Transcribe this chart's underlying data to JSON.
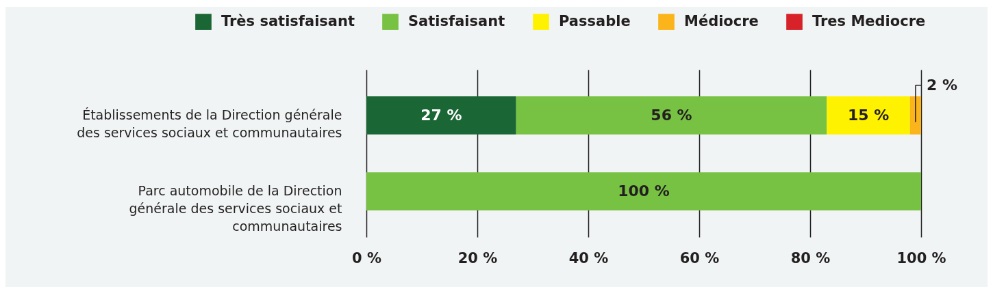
{
  "chart_data": {
    "type": "bar",
    "orientation": "horizontal",
    "stacked": true,
    "categories": [
      "Établissements de la Direction générale des services sociaux et communautaires",
      "Parc automobile de la Direction générale des services sociaux et communautaires"
    ],
    "series": [
      {
        "name": "Très satisfaisant",
        "color": "#1a6634",
        "values": [
          27,
          null
        ],
        "value_labels": [
          "27 %",
          null
        ]
      },
      {
        "name": "Satisfaisant",
        "color": "#77c143",
        "values": [
          56,
          100
        ],
        "value_labels": [
          "56 %",
          "100 %"
        ]
      },
      {
        "name": "Passable",
        "color": "#fff200",
        "values": [
          15,
          null
        ],
        "value_labels": [
          "15 %",
          null
        ]
      },
      {
        "name": "Médiocre",
        "color": "#fbb51a",
        "values": [
          2,
          null
        ],
        "value_labels": [
          "2 %",
          null
        ]
      },
      {
        "name": "Tres Mediocre",
        "color": "#d7222a",
        "values": [
          null,
          null
        ],
        "value_labels": [
          null,
          null
        ]
      }
    ],
    "xlim": [
      0,
      100
    ],
    "xticks": [
      {
        "value": 0,
        "label": "0 %"
      },
      {
        "value": 20,
        "label": "20 %"
      },
      {
        "value": 40,
        "label": "40 %"
      },
      {
        "value": 60,
        "label": "60 %"
      },
      {
        "value": 80,
        "label": "80 %"
      },
      {
        "value": 100,
        "label": "100 %"
      }
    ],
    "grid": "x",
    "legend": "top"
  }
}
